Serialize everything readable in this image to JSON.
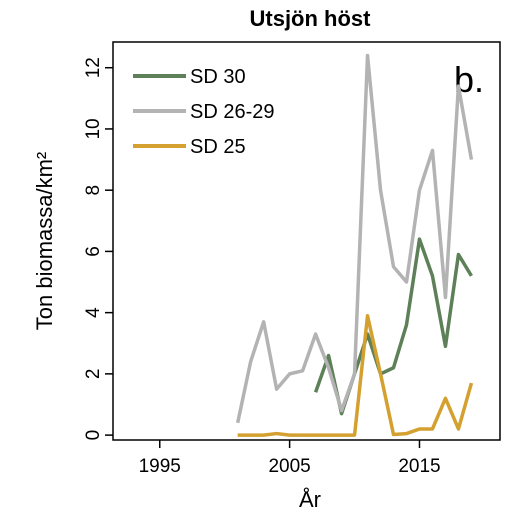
{
  "chart_data": {
    "type": "line",
    "title": "Utsjön höst",
    "ylabel": "Ton biomassa/km²",
    "xlabel": "År",
    "annotation": "b.",
    "legend": "top-left",
    "x": [
      2001,
      2002,
      2003,
      2004,
      2005,
      2006,
      2007,
      2008,
      2009,
      2010,
      2011,
      2012,
      2013,
      2014,
      2015,
      2016,
      2017,
      2018,
      2019
    ],
    "series": [
      {
        "name": "SD 30",
        "color": "#5e8058",
        "values": [
          null,
          null,
          null,
          null,
          null,
          null,
          1.4,
          2.6,
          0.7,
          2.0,
          3.3,
          2.0,
          2.2,
          3.6,
          6.4,
          5.2,
          2.9,
          5.9,
          5.2
        ]
      },
      {
        "name": "SD 26-29",
        "color": "#b3b3b3",
        "values": [
          0.4,
          2.4,
          3.7,
          1.5,
          2.0,
          2.1,
          3.3,
          2.2,
          0.8,
          2.0,
          12.4,
          8.0,
          5.5,
          5.0,
          8.0,
          9.3,
          4.5,
          11.4,
          9.0
        ]
      },
      {
        "name": "SD 25",
        "color": "#d4a030",
        "values": [
          0,
          0,
          0,
          0.05,
          0,
          0,
          0,
          0,
          0,
          0,
          3.9,
          2.0,
          0.02,
          0.05,
          0.2,
          0.2,
          1.2,
          0.2,
          1.7
        ]
      }
    ],
    "xlim": [
      1991.4,
      2021.2
    ],
    "xticks": [
      1995,
      2005,
      2015
    ],
    "ylim": [
      -0.16,
      12.84
    ],
    "yticks": [
      0,
      2,
      4,
      6,
      8,
      10,
      12
    ]
  }
}
